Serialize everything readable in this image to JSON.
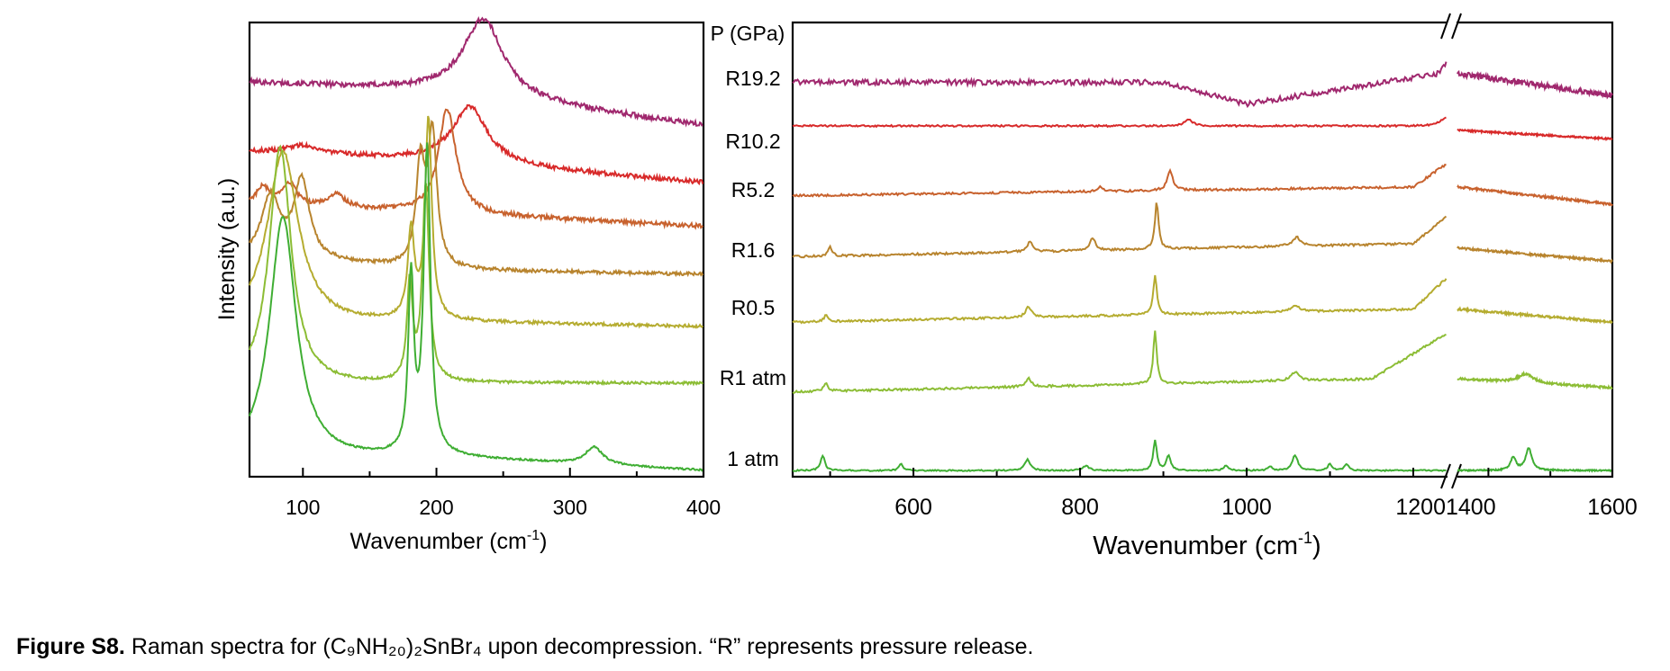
{
  "chart_data": {
    "type": "line",
    "ylabel": "Intensity (a.u.)",
    "legend_title": "P (GPa)",
    "pressure_labels": [
      "R19.2",
      "R10.2",
      "R5.2",
      "R1.6",
      "R0.5",
      "R1 atm",
      "1 atm"
    ],
    "series_colors": [
      "#a0286e",
      "#d82a2a",
      "#c8622e",
      "#b8842e",
      "#b5ac30",
      "#8cbd35",
      "#3fae33"
    ],
    "panels": [
      {
        "xlabel": "Wavenumber (cm",
        "xlabel_sup": "-1",
        "xlabel_end": ")",
        "xlim": [
          60,
          400
        ],
        "xticks": [
          100,
          200,
          300,
          400
        ],
        "tick_labels": [
          "100",
          "200",
          "300",
          "400"
        ]
      },
      {
        "xlabel": "Wavenumber (cm",
        "xlabel_sup": "-1",
        "xlabel_end": ")",
        "xlim": [
          455,
          1600
        ],
        "broken_axis": [
          1240,
          1350
        ],
        "xticks": [
          600,
          800,
          1000,
          1200,
          1400,
          1600
        ],
        "tick_labels": [
          "600",
          "800",
          "1000",
          "1200",
          "1400",
          "1600"
        ]
      }
    ],
    "series_low": [
      {
        "baseline": [
          [
            60,
            0.9
          ],
          [
            200,
            0.88
          ],
          [
            400,
            0.8
          ]
        ],
        "peaks": [
          [
            235,
            0.18,
            18
          ]
        ],
        "noise": 0.012
      },
      {
        "baseline": [
          [
            60,
            0.74
          ],
          [
            200,
            0.72
          ],
          [
            400,
            0.67
          ]
        ],
        "peaks": [
          [
            100,
            0.02,
            15
          ],
          [
            225,
            0.13,
            16
          ]
        ],
        "noise": 0.01
      },
      {
        "baseline": [
          [
            60,
            0.62
          ],
          [
            200,
            0.6
          ],
          [
            400,
            0.57
          ]
        ],
        "peaks": [
          [
            70,
            0.04,
            6
          ],
          [
            90,
            0.05,
            6
          ],
          [
            125,
            0.03,
            8
          ],
          [
            208,
            0.24,
            8
          ]
        ],
        "noise": 0.01
      },
      {
        "baseline": [
          [
            60,
            0.5
          ],
          [
            200,
            0.47
          ],
          [
            400,
            0.46
          ]
        ],
        "peaks": [
          [
            76,
            0.14,
            8
          ],
          [
            99,
            0.18,
            7
          ],
          [
            188,
            0.23,
            4
          ],
          [
            197,
            0.3,
            4
          ]
        ],
        "noise": 0.008
      },
      {
        "baseline": [
          [
            60,
            0.34
          ],
          [
            200,
            0.35
          ],
          [
            400,
            0.34
          ]
        ],
        "peaks": [
          [
            85,
            0.4,
            14
          ],
          [
            181,
            0.2,
            3
          ],
          [
            194,
            0.46,
            3
          ]
        ],
        "noise": 0.007
      },
      {
        "baseline": [
          [
            60,
            0.2
          ],
          [
            200,
            0.21
          ],
          [
            400,
            0.21
          ]
        ],
        "peaks": [
          [
            83,
            0.55,
            10
          ],
          [
            180,
            0.22,
            2.5
          ],
          [
            192,
            0.45,
            3
          ]
        ],
        "noise": 0.006
      },
      {
        "baseline": [
          [
            60,
            0.03
          ],
          [
            200,
            0.04
          ],
          [
            400,
            0.01
          ]
        ],
        "peaks": [
          [
            85,
            0.56,
            12
          ],
          [
            181,
            0.4,
            2.5
          ],
          [
            193,
            0.7,
            3
          ],
          [
            318,
            0.04,
            8
          ]
        ],
        "noise": 0.004
      }
    ],
    "series_high": [
      {
        "baseline": [
          [
            455,
            0.9
          ],
          [
            900,
            0.9
          ],
          [
            1000,
            0.85
          ],
          [
            1230,
            0.92
          ],
          [
            1245,
            0.96
          ],
          [
            1350,
            0.92
          ],
          [
            1600,
            0.87
          ]
        ],
        "peaks": [],
        "noise": 0.012
      },
      {
        "baseline": [
          [
            455,
            0.8
          ],
          [
            1240,
            0.8
          ],
          [
            1350,
            0.79
          ],
          [
            1600,
            0.77
          ]
        ],
        "peaks": [
          [
            930,
            0.015,
            6
          ],
          [
            1240,
            0.02,
            8
          ]
        ],
        "noise": 0.004
      },
      {
        "baseline": [
          [
            455,
            0.64
          ],
          [
            1200,
            0.66
          ],
          [
            1245,
            0.72
          ],
          [
            1350,
            0.66
          ],
          [
            1600,
            0.62
          ]
        ],
        "peaks": [
          [
            908,
            0.045,
            4
          ],
          [
            825,
            0.01,
            4
          ]
        ],
        "noise": 0.005
      },
      {
        "baseline": [
          [
            455,
            0.5
          ],
          [
            1200,
            0.53
          ],
          [
            1245,
            0.6
          ],
          [
            1350,
            0.52
          ],
          [
            1600,
            0.49
          ]
        ],
        "peaks": [
          [
            500,
            0.02,
            3
          ],
          [
            740,
            0.025,
            4
          ],
          [
            815,
            0.03,
            4
          ],
          [
            892,
            0.11,
            2.5
          ],
          [
            1060,
            0.02,
            6
          ]
        ],
        "noise": 0.005
      },
      {
        "baseline": [
          [
            455,
            0.35
          ],
          [
            1200,
            0.38
          ],
          [
            1245,
            0.46
          ],
          [
            1350,
            0.38
          ],
          [
            1600,
            0.35
          ]
        ],
        "peaks": [
          [
            495,
            0.015,
            3
          ],
          [
            738,
            0.025,
            4
          ],
          [
            890,
            0.09,
            2.5
          ],
          [
            1058,
            0.015,
            6
          ]
        ],
        "noise": 0.005
      },
      {
        "baseline": [
          [
            455,
            0.19
          ],
          [
            1150,
            0.22
          ],
          [
            1245,
            0.33
          ],
          [
            1350,
            0.22
          ],
          [
            1600,
            0.2
          ]
        ],
        "peaks": [
          [
            495,
            0.02,
            3
          ],
          [
            738,
            0.02,
            4
          ],
          [
            890,
            0.12,
            2.5
          ],
          [
            1058,
            0.02,
            6
          ],
          [
            1460,
            0.02,
            15
          ]
        ],
        "noise": 0.005
      },
      {
        "baseline": [
          [
            455,
            0.01
          ],
          [
            1600,
            0.01
          ]
        ],
        "peaks": [
          [
            491,
            0.035,
            3
          ],
          [
            585,
            0.015,
            3
          ],
          [
            737,
            0.025,
            4
          ],
          [
            807,
            0.01,
            5
          ],
          [
            890,
            0.07,
            2.5
          ],
          [
            906,
            0.035,
            3
          ],
          [
            975,
            0.012,
            3
          ],
          [
            1028,
            0.01,
            3
          ],
          [
            1058,
            0.035,
            4
          ],
          [
            1100,
            0.015,
            3
          ],
          [
            1120,
            0.015,
            3
          ],
          [
            1440,
            0.03,
            5
          ],
          [
            1465,
            0.05,
            6
          ]
        ],
        "noise": 0.003
      }
    ]
  },
  "caption": {
    "label": "Figure S8.",
    "text": "Raman spectra for (C₉NH₂₀)₂SnBr₄ upon decompression. “R” represents pressure release."
  }
}
